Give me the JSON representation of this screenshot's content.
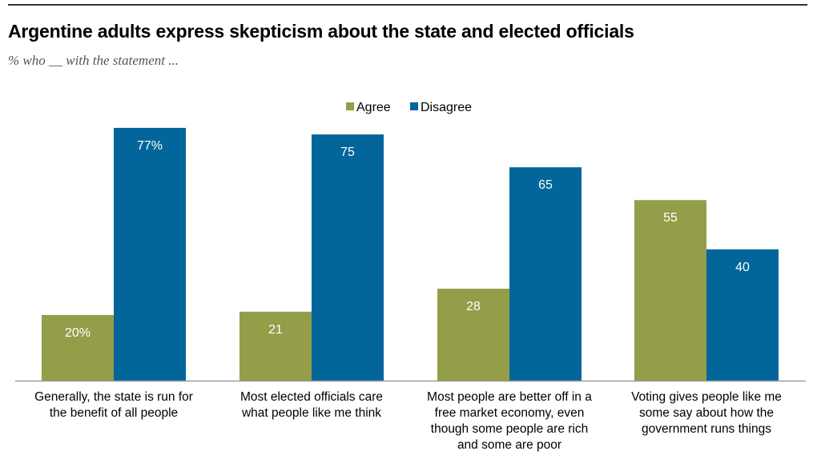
{
  "chart_data": {
    "type": "bar",
    "title": "Argentine adults express skepticism about the state and elected officials",
    "subtitle": "% who __ with the statement ...",
    "xlabel": "",
    "ylabel": "",
    "ylim": [
      0,
      100
    ],
    "grid": false,
    "legend_position": "top-center",
    "categories": [
      "Generally, the state is run for the benefit of all people",
      "Most elected officials care what people like me think",
      "Most people are better off in a free market economy, even though some people are rich and some are poor",
      "Voting gives people like me some say about how the government runs things"
    ],
    "category_lines": [
      [
        "Generally, the state is run for",
        "the benefit of all people"
      ],
      [
        "Most elected officials care",
        "what people like me think"
      ],
      [
        "Most people are better off in a",
        "free market economy, even",
        "though some people are rich",
        "and some are poor"
      ],
      [
        "Voting gives people like me",
        "some say about how the",
        "government runs things"
      ]
    ],
    "series": [
      {
        "name": "Agree",
        "color": "#949d48",
        "values": [
          20,
          21,
          28,
          55
        ],
        "labels": [
          "20%",
          "21",
          "28",
          "55"
        ]
      },
      {
        "name": "Disagree",
        "color": "#02669a",
        "values": [
          77,
          75,
          65,
          40
        ],
        "labels": [
          "77%",
          "75",
          "65",
          "40"
        ]
      }
    ]
  }
}
